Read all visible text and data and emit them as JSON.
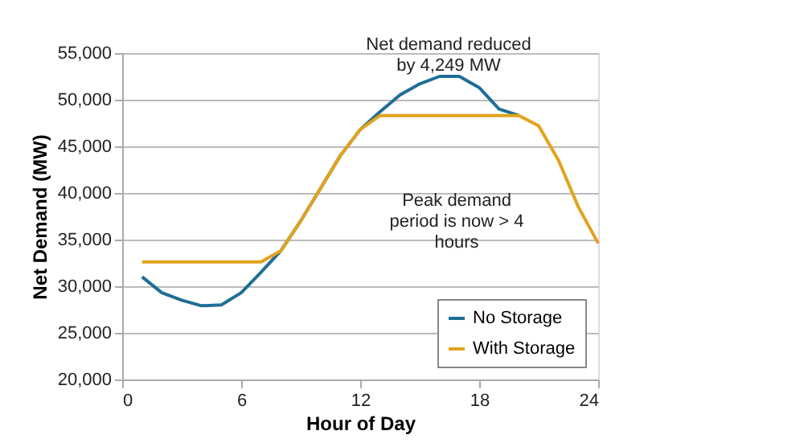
{
  "chart_data": {
    "type": "line",
    "xlabel": "Hour of Day",
    "ylabel": "Net Demand (MW)",
    "xlim": [
      0,
      24
    ],
    "xticks": [
      0,
      6,
      12,
      18,
      24
    ],
    "ylim": [
      20000,
      55000
    ],
    "yticks": [
      {
        "value": 20000,
        "label": "20,000"
      },
      {
        "value": 25000,
        "label": "25,000"
      },
      {
        "value": 30000,
        "label": "30,000"
      },
      {
        "value": 35000,
        "label": "35,000"
      },
      {
        "value": 40000,
        "label": "40,000"
      },
      {
        "value": 45000,
        "label": "45,000"
      },
      {
        "value": 50000,
        "label": "50,000"
      },
      {
        "value": 55000,
        "label": "55,000"
      }
    ],
    "grid": "y",
    "legend": "bottom right",
    "line_style": "solid",
    "series": [
      {
        "name": "No Storage",
        "color": "#1f6e96",
        "x": [
          1,
          2,
          3,
          4,
          5,
          6,
          7,
          8,
          9,
          10,
          11,
          12,
          13,
          14,
          15,
          16,
          17,
          18,
          19,
          20
        ],
        "values": [
          31000,
          29300,
          28500,
          27900,
          28000,
          29300,
          31500,
          33800,
          37000,
          40500,
          44000,
          46800,
          48700,
          50500,
          51700,
          52500,
          52500,
          51300,
          49000,
          48300
        ]
      },
      {
        "name": "With Storage",
        "color": "#e2a31c",
        "x": [
          1,
          2,
          3,
          4,
          5,
          6,
          7,
          8,
          9,
          10,
          11,
          12,
          13,
          14,
          15,
          16,
          17,
          18,
          19,
          20,
          21,
          22,
          23,
          24
        ],
        "values": [
          32600,
          32600,
          32600,
          32600,
          32600,
          32600,
          32600,
          33800,
          37000,
          40500,
          44000,
          46800,
          48300,
          48300,
          48300,
          48300,
          48300,
          48300,
          48300,
          48300,
          47200,
          43500,
          38500,
          34600
        ]
      }
    ],
    "annotations": [
      "Net demand reduced\nby 4,249 MW",
      "Peak demand\nperiod is now > 4\nhours"
    ]
  }
}
